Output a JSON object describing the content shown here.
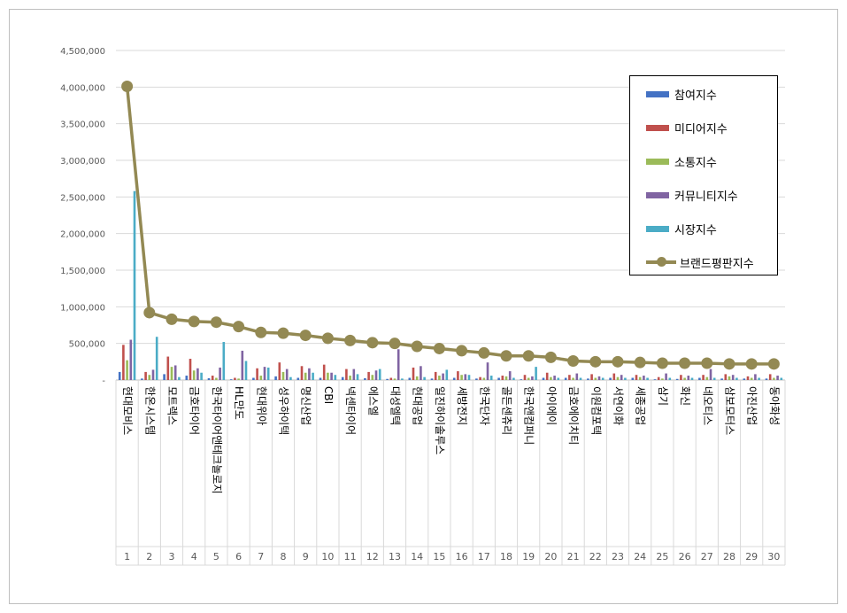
{
  "chart_data": {
    "type": "bar",
    "title": "",
    "xlabel": "",
    "ylabel": "",
    "ylim": [
      0,
      4500000
    ],
    "yticks": [
      "-",
      "500,000",
      "1,000,000",
      "1,500,000",
      "2,000,000",
      "2,500,000",
      "3,000,000",
      "3,500,000",
      "4,000,000",
      "4,500,000"
    ],
    "grid": true,
    "legend_position": "top-right",
    "ranks": [
      "1",
      "2",
      "3",
      "4",
      "5",
      "6",
      "7",
      "8",
      "9",
      "10",
      "11",
      "12",
      "13",
      "14",
      "15",
      "16",
      "17",
      "18",
      "19",
      "20",
      "21",
      "22",
      "23",
      "24",
      "25",
      "26",
      "27",
      "28",
      "29",
      "30"
    ],
    "categories": [
      "현대모비스",
      "한온시스템",
      "모트렉스",
      "금호타이어",
      "한국타이어앤테크놀로지",
      "HL만도",
      "현대위아",
      "성우하이텍",
      "명신산업",
      "CBI",
      "넥센타이어",
      "에스엘",
      "대성엘텍",
      "현대공업",
      "일진하이솔루스",
      "세방전지",
      "한국단자",
      "골든센츄리",
      "한국앤컴퍼니",
      "아이에이",
      "금호에이치티",
      "이원컴포텍",
      "서연이화",
      "세종공업",
      "삼기",
      "화신",
      "네오티스",
      "삼보모터스",
      "아진산업",
      "동아화성"
    ],
    "series": [
      {
        "name": "참여지수",
        "color": "#4472C4",
        "values": [
          110000,
          20000,
          80000,
          60000,
          25000,
          10000,
          30000,
          50000,
          30000,
          30000,
          40000,
          25000,
          15000,
          30000,
          20000,
          30000,
          20000,
          30000,
          10000,
          30000,
          30000,
          20000,
          30000,
          30000,
          10000,
          15000,
          30000,
          20000,
          20000,
          20000
        ]
      },
      {
        "name": "미디어지수",
        "color": "#C0504D",
        "values": [
          480000,
          110000,
          320000,
          290000,
          60000,
          30000,
          160000,
          240000,
          190000,
          210000,
          150000,
          110000,
          30000,
          170000,
          110000,
          120000,
          40000,
          60000,
          70000,
          100000,
          70000,
          80000,
          90000,
          70000,
          40000,
          70000,
          70000,
          80000,
          50000,
          80000
        ]
      },
      {
        "name": "소통지수",
        "color": "#9BBB59",
        "values": [
          270000,
          70000,
          180000,
          130000,
          30000,
          20000,
          60000,
          110000,
          100000,
          100000,
          60000,
          70000,
          20000,
          50000,
          60000,
          70000,
          30000,
          50000,
          30000,
          40000,
          30000,
          30000,
          40000,
          40000,
          20000,
          30000,
          40000,
          50000,
          30000,
          30000
        ]
      },
      {
        "name": "커뮤니티지수",
        "color": "#8064A2",
        "values": [
          550000,
          140000,
          200000,
          160000,
          170000,
          400000,
          180000,
          150000,
          160000,
          100000,
          150000,
          130000,
          420000,
          190000,
          90000,
          80000,
          240000,
          120000,
          50000,
          60000,
          90000,
          50000,
          70000,
          60000,
          90000,
          60000,
          150000,
          70000,
          80000,
          60000
        ]
      },
      {
        "name": "시장지수",
        "color": "#4BACC6",
        "values": [
          2580000,
          590000,
          40000,
          100000,
          520000,
          260000,
          170000,
          40000,
          100000,
          70000,
          80000,
          150000,
          20000,
          40000,
          140000,
          70000,
          60000,
          30000,
          180000,
          30000,
          30000,
          30000,
          30000,
          30000,
          30000,
          30000,
          30000,
          30000,
          30000,
          30000
        ]
      },
      {
        "name": "브랜드평판지수",
        "color": "#938953",
        "type": "line",
        "values": [
          4010000,
          920000,
          830000,
          800000,
          790000,
          730000,
          650000,
          640000,
          610000,
          570000,
          540000,
          510000,
          500000,
          460000,
          430000,
          400000,
          370000,
          330000,
          330000,
          310000,
          260000,
          250000,
          250000,
          240000,
          230000,
          230000,
          230000,
          220000,
          220000,
          220000
        ]
      }
    ]
  }
}
